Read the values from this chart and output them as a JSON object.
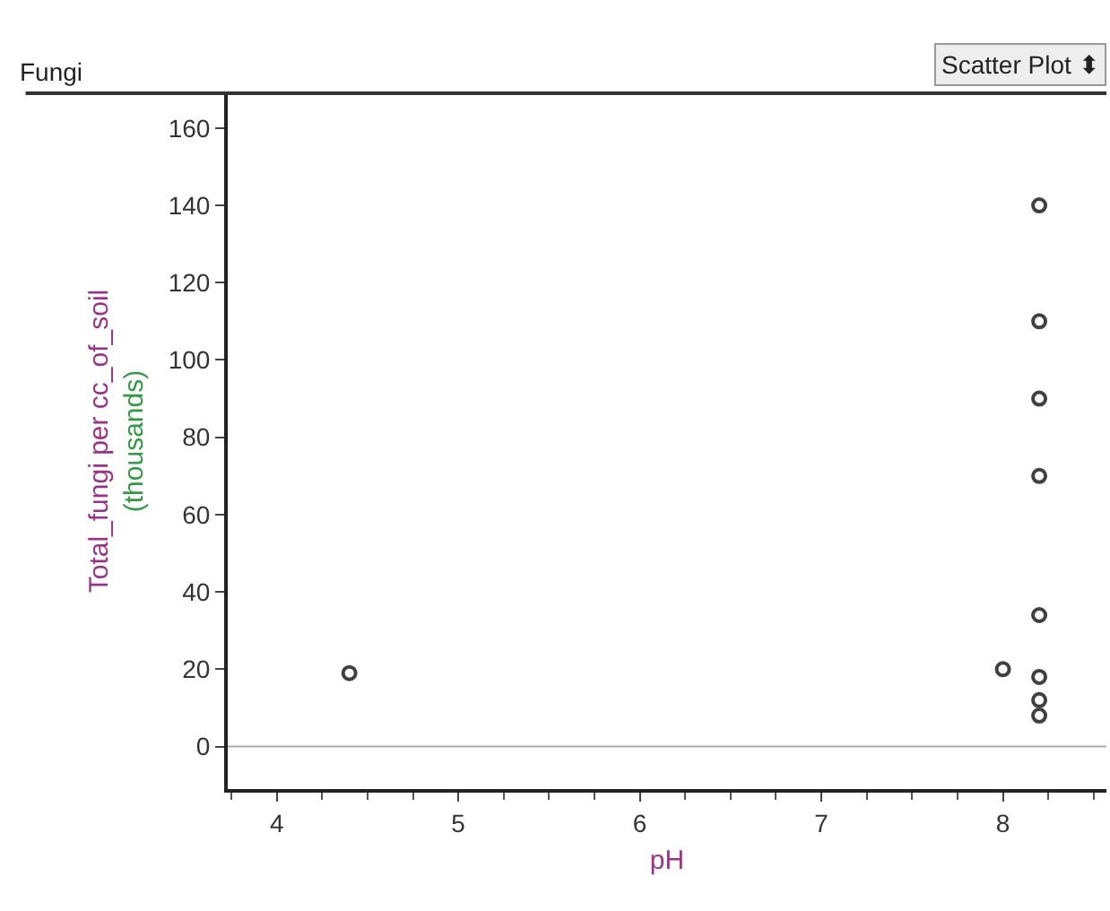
{
  "chart_data": {
    "type": "scatter",
    "title": "Fungi",
    "xlabel": "pH",
    "ylabel": "Total_fungi per cc_of_soil\n(thousands)",
    "annotations": [
      "Scatter Plot ⬍"
    ],
    "x": [
      4.4,
      8.0,
      8.2,
      8.2,
      8.2,
      8.2,
      8.2,
      8.2,
      8.2,
      8.2
    ],
    "values": [
      19,
      20,
      140,
      110,
      90,
      70,
      34,
      18,
      12,
      8
    ],
    "color": "#404040",
    "marker": "circle",
    "xlim": [
      3.73,
      8.57
    ],
    "xticks": [
      4,
      5,
      6,
      7,
      8
    ],
    "ylim": [
      -11,
      169
    ],
    "yticks": [
      0,
      20,
      40,
      60,
      80,
      100,
      120,
      140,
      160
    ],
    "ref_lines": [
      {
        "axis": "y",
        "value": 0,
        "color": "#aaaaaa"
      }
    ],
    "tick_labels": "xy"
  }
}
